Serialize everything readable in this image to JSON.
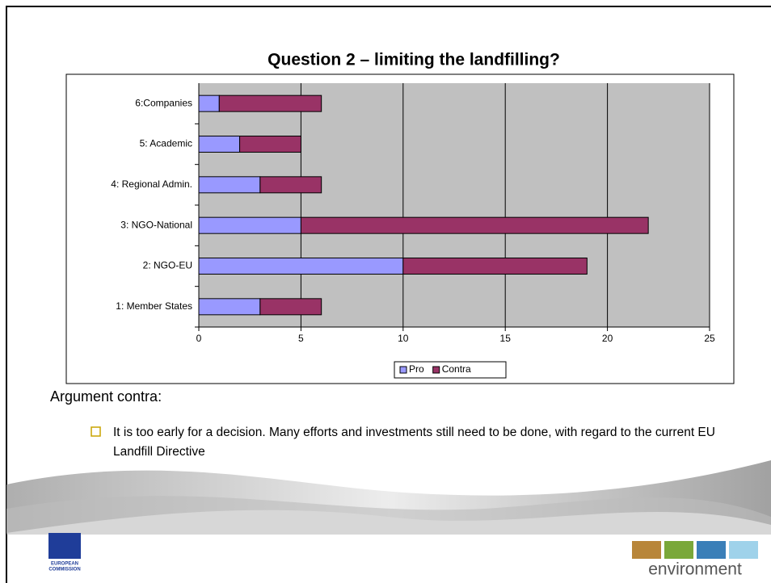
{
  "chart_data": {
    "type": "bar",
    "orientation": "horizontal",
    "stacked": true,
    "title": "Question 2 – limiting the landfilling?",
    "categories": [
      "1: Member States",
      "2: NGO-EU",
      "3: NGO-National",
      "4: Regional Admin.",
      "5: Academic",
      "6:Companies"
    ],
    "series": [
      {
        "name": "Pro",
        "color": "#9999ff",
        "values": [
          3,
          10,
          5,
          3,
          2,
          1
        ]
      },
      {
        "name": "Contra",
        "color": "#993366",
        "values": [
          3,
          9,
          17,
          3,
          3,
          5
        ]
      }
    ],
    "xlim": [
      0,
      25
    ],
    "xticks": [
      0,
      5,
      10,
      15,
      20,
      25
    ],
    "grid": true,
    "legend": "bottom"
  },
  "slide": {
    "heading": "Argument contra:",
    "bullet": "It is too early for a decision. Many efforts and investments still need to be done, with regard to the current EU Landfill Directive",
    "logo_left": [
      "EUROPEAN",
      "COMMISSION"
    ],
    "logo_right": "environment"
  }
}
